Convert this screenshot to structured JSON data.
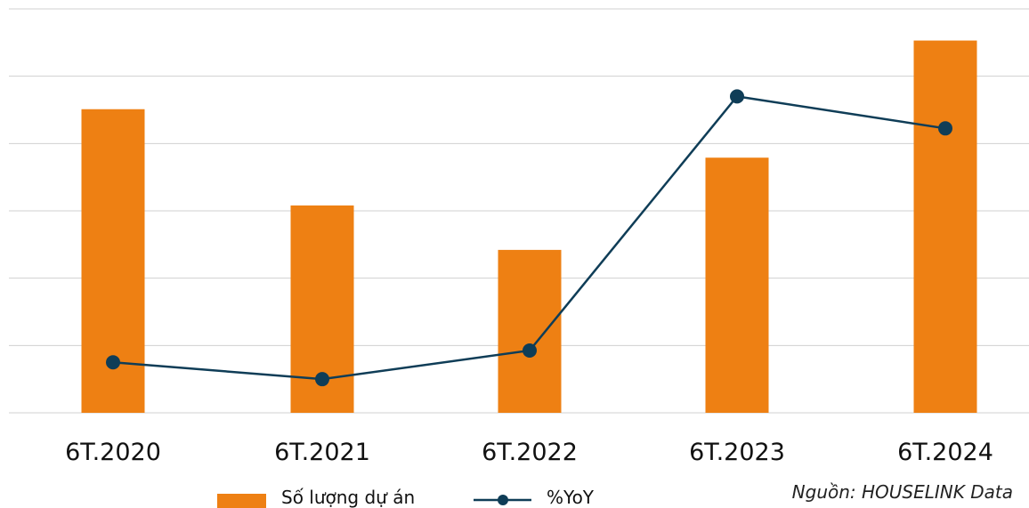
{
  "chart_data": {
    "type": "bar",
    "categories": [
      "6T.2020",
      "6T.2021",
      "6T.2022",
      "6T.2023",
      "6T.2024"
    ],
    "series": [
      {
        "name": "Số lượng dự án",
        "type": "bar",
        "values": [
          451,
          308,
          242,
          379,
          553
        ]
      },
      {
        "name": "%YoY",
        "type": "line",
        "values": [
          -70,
          -80,
          -63,
          88,
          69
        ]
      }
    ],
    "ylim": [
      0,
      600
    ],
    "y2lim": [
      -100,
      140
    ],
    "grid": true,
    "legend": "bottom",
    "colors": {
      "bar": "#ee8013",
      "line": "#0f3d57",
      "grid": "#d0d0d0"
    }
  },
  "source": "Nguồn: HOUSELINK Data"
}
